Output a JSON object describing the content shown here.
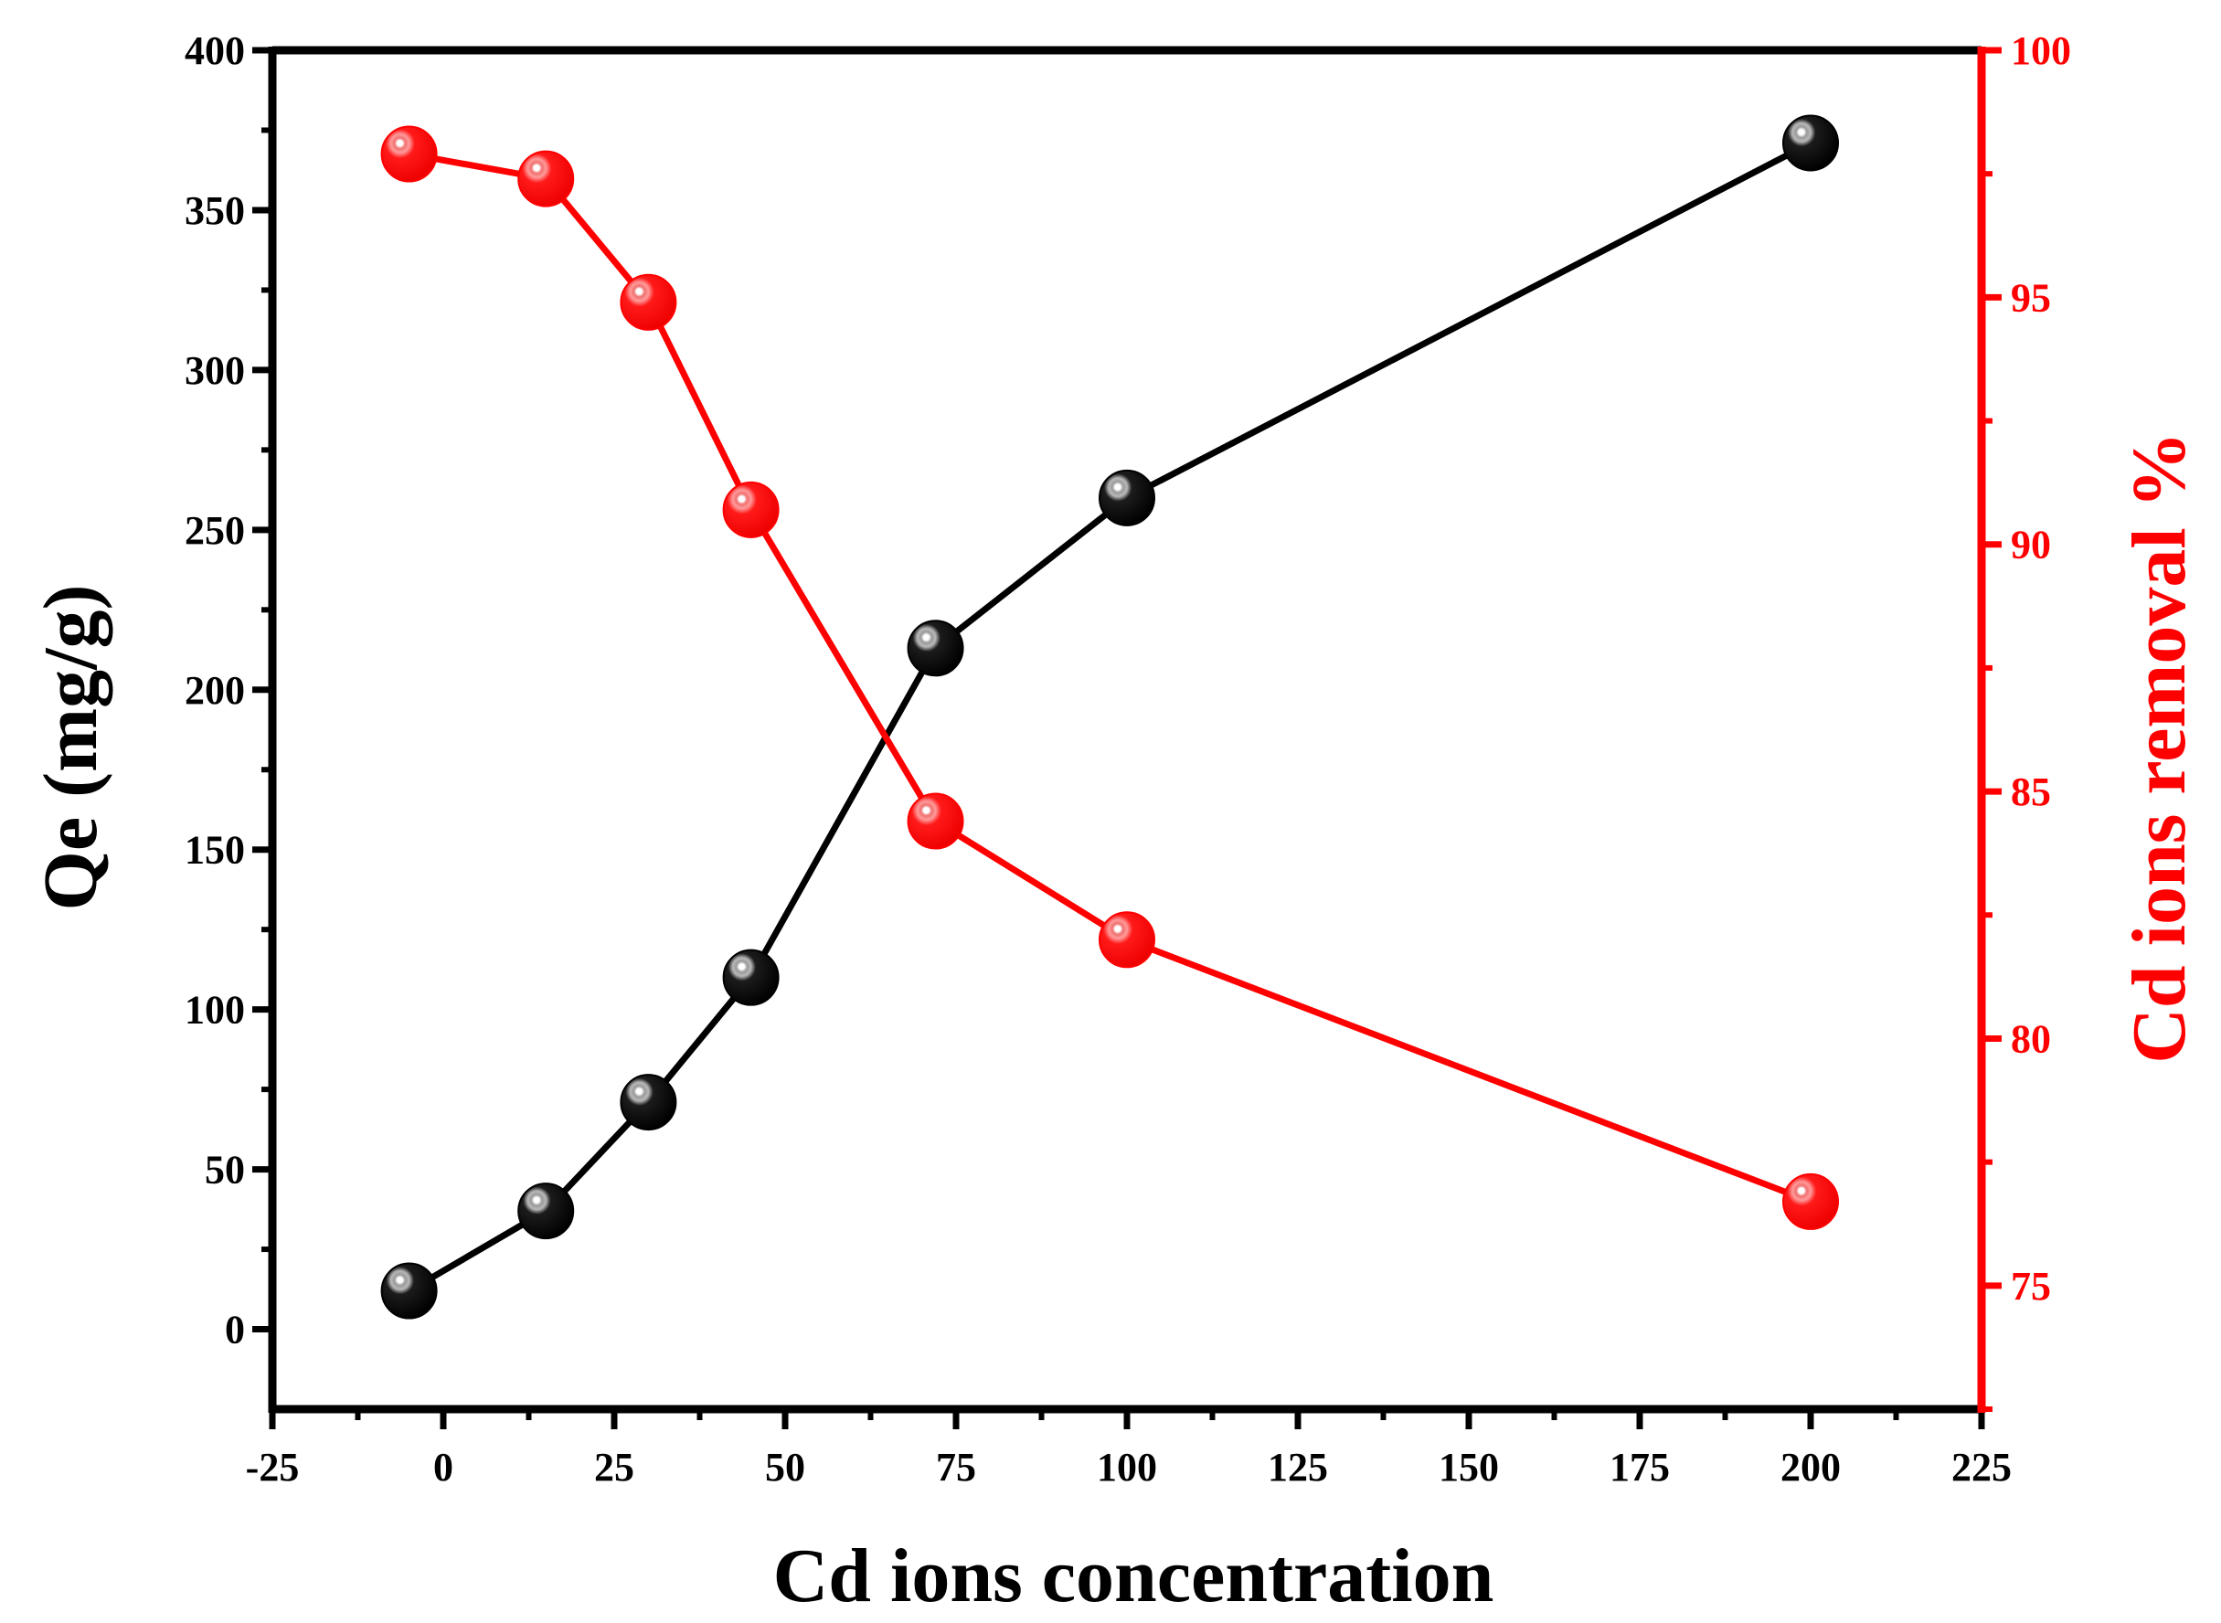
{
  "chart_data": {
    "type": "line",
    "title": "",
    "xlabel": "Cd ions concentration",
    "ylabel": "Qe (mg/g)",
    "y2label": "Cd ions removal %",
    "xlim": [
      -25,
      225
    ],
    "ylim": [
      -25,
      400
    ],
    "y2lim": [
      72.5,
      100
    ],
    "x_ticks": [
      "-25",
      "0",
      "25",
      "50",
      "75",
      "100",
      "125",
      "150",
      "175",
      "200",
      "225"
    ],
    "y_ticks": [
      "0",
      "50",
      "100",
      "150",
      "200",
      "250",
      "300",
      "350",
      "400"
    ],
    "y2_ticks": [
      "75",
      "80",
      "85",
      "90",
      "95",
      "100"
    ],
    "series": [
      {
        "name": "Qe (mg/g)",
        "axis": "left",
        "color": "#000000",
        "x": [
          -5,
          15,
          30,
          45,
          72,
          100,
          200
        ],
        "values": [
          12,
          37,
          71,
          110,
          213,
          260,
          371
        ]
      },
      {
        "name": "Cd ions removal %",
        "axis": "right",
        "color": "#ff0000",
        "x": [
          -5,
          15,
          30,
          45,
          72,
          100,
          200
        ],
        "values": [
          97.9,
          97.4,
          94.9,
          90.7,
          84.4,
          82.0,
          76.7
        ]
      }
    ],
    "grid": false,
    "legend": "none"
  }
}
